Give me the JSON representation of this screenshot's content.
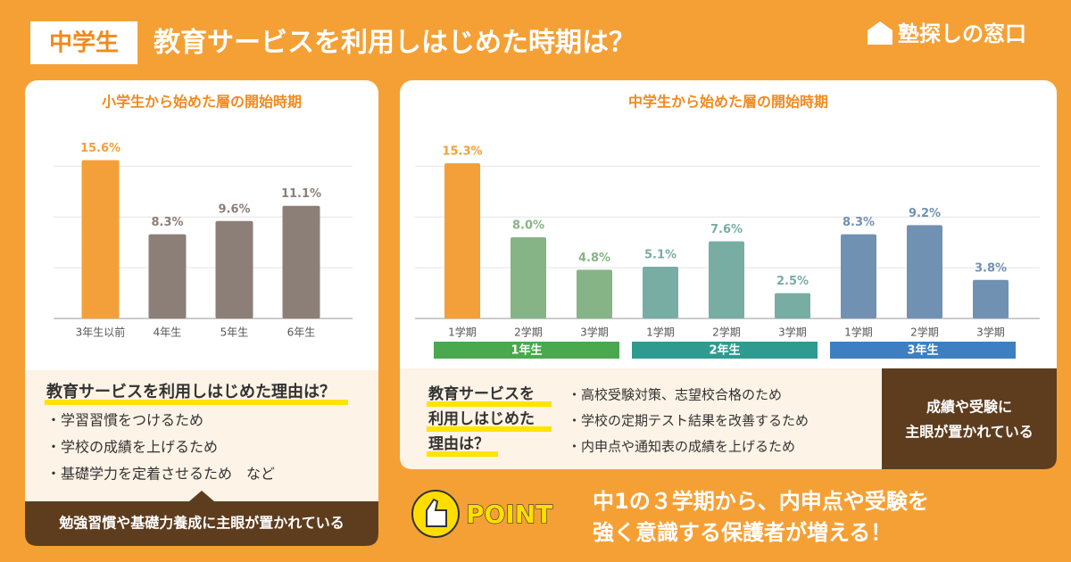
{
  "header": {
    "badge": "中学生",
    "title": "教育サービスを利用しはじめた時期は？",
    "logo": "塾探しの窓口"
  },
  "chart_data": [
    {
      "type": "bar",
      "title": "小学生から始めた層の開始時期",
      "categories": [
        "3年生以前",
        "4年生",
        "5年生",
        "6年生"
      ],
      "values": [
        15.6,
        8.3,
        9.6,
        11.1
      ],
      "value_labels": [
        "15.6%",
        "8.3%",
        "9.6%",
        "11.1%"
      ],
      "colors": [
        "#f4a03a",
        "#8c7f78",
        "#8c7f78",
        "#8c7f78"
      ],
      "ylim": [
        0,
        16
      ],
      "yticks": [
        0,
        5,
        10,
        15
      ],
      "grid": true
    },
    {
      "type": "bar",
      "title": "中学生から始めた層の開始時期",
      "categories": [
        "1学期",
        "2学期",
        "3学期",
        "1学期",
        "2学期",
        "3学期",
        "1学期",
        "2学期",
        "3学期"
      ],
      "values": [
        15.3,
        8.0,
        4.8,
        5.1,
        7.6,
        2.5,
        8.3,
        9.2,
        3.8
      ],
      "value_labels": [
        "15.3%",
        "8.0%",
        "4.8%",
        "5.1%",
        "7.6%",
        "2.5%",
        "8.3%",
        "9.2%",
        "3.8%"
      ],
      "colors": [
        "#f4a03a",
        "#86b487",
        "#86b487",
        "#78ada4",
        "#78ada4",
        "#78ada4",
        "#7191b3",
        "#7191b3",
        "#7191b3"
      ],
      "groups": [
        {
          "label": "1年生",
          "color": "#4aa84e"
        },
        {
          "label": "2年生",
          "color": "#2f9a8f"
        },
        {
          "label": "3年生",
          "color": "#3e7fc1"
        }
      ],
      "ylim": [
        0,
        16
      ],
      "yticks": [
        0,
        5,
        10,
        15
      ],
      "grid": true
    }
  ],
  "left_reason": {
    "title": "教育サービスを利用しはじめた理由は？",
    "items": [
      "・学習習慣をつけるため",
      "・学校の成績を上げるため",
      "・基礎学力を定着させるため　など"
    ],
    "summary": "勉強習慣や基礎力養成に主眼が置かれている"
  },
  "right_reason": {
    "title_lines": [
      "教育サービスを",
      "利用しはじめた",
      "理由は？"
    ],
    "items": [
      "・高校受験対策、志望校合格のため",
      "・学校の定期テスト結果を改善するため",
      "・内申点や通知表の成績を上げるため"
    ],
    "summary_lines": [
      "成績や受験に",
      "主眼が置かれている"
    ]
  },
  "point": {
    "label": "POINT",
    "lines": [
      "中1の３学期から、内申点や受験を",
      "強く意識する保護者が増える！"
    ]
  }
}
